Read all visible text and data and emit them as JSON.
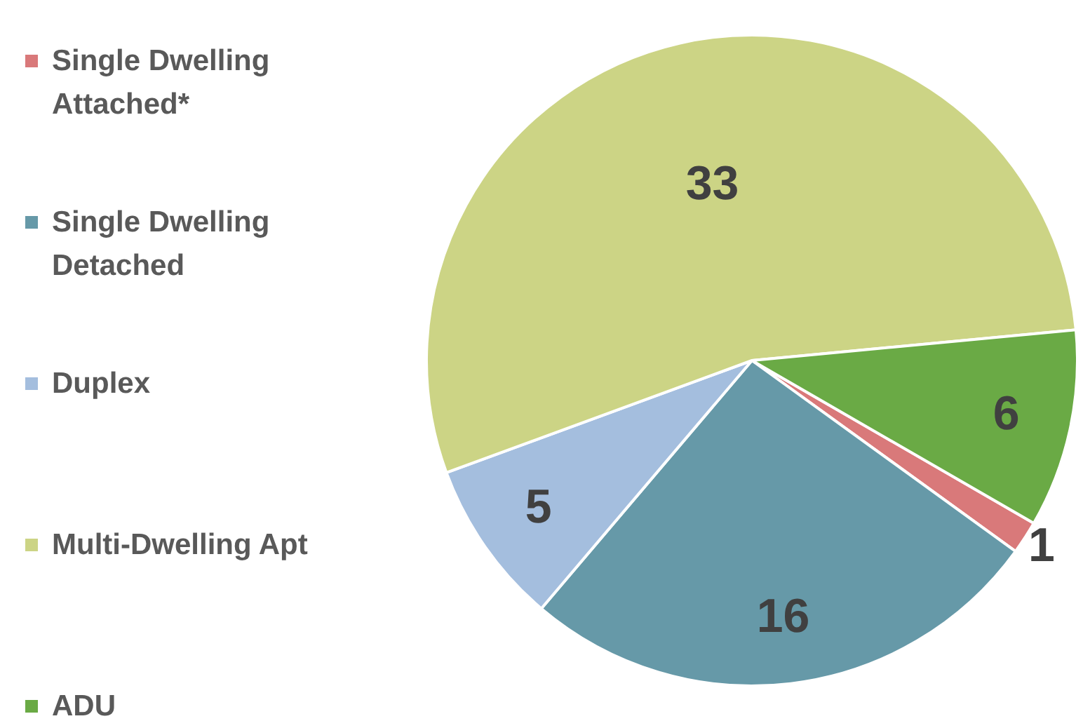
{
  "chart_data": {
    "type": "pie",
    "categories": [
      "Single Dwelling Attached*",
      "Single Dwelling Detached",
      "Duplex",
      "Multi-Dwelling Apt",
      "ADU"
    ],
    "values": [
      1,
      16,
      5,
      33,
      6
    ],
    "colors": [
      "#d9797a",
      "#6699a8",
      "#a4bede",
      "#ccd485",
      "#6aaa45"
    ],
    "legend": "left",
    "data_labels": true
  }
}
